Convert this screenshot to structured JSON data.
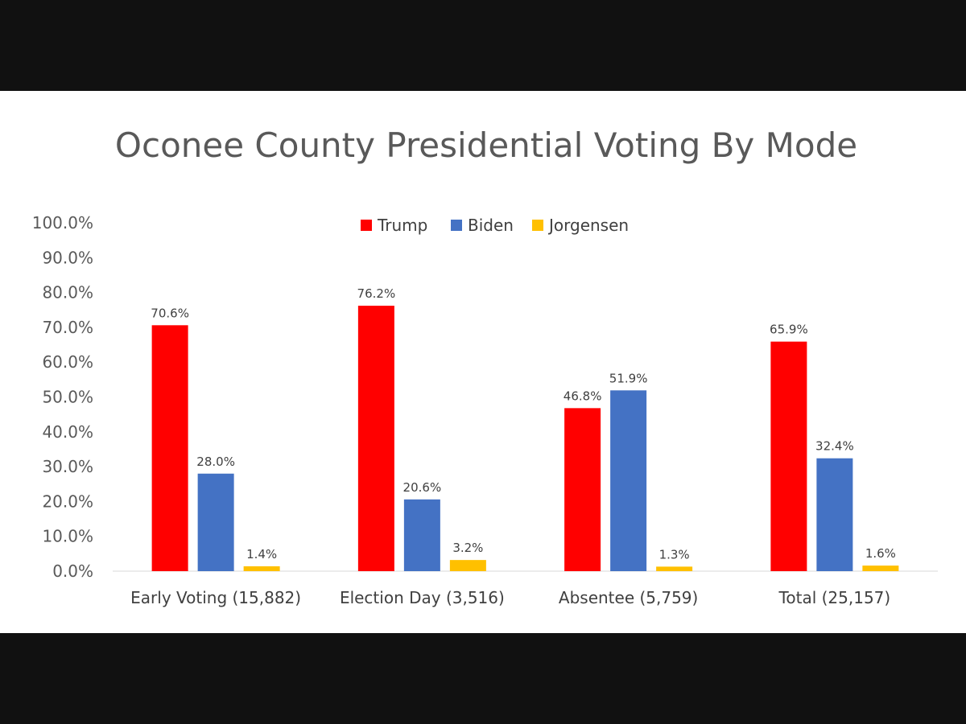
{
  "chart_data": {
    "type": "bar",
    "title": "Oconee County Presidential Voting By Mode",
    "categories": [
      "Early Voting (15,882)",
      "Election Day (3,516)",
      "Absentee (5,759)",
      "Total (25,157)"
    ],
    "series": [
      {
        "name": "Trump",
        "color": "#ff0000",
        "values": [
          70.6,
          76.2,
          46.8,
          65.9
        ]
      },
      {
        "name": "Biden",
        "color": "#4472c4",
        "values": [
          28.0,
          20.6,
          51.9,
          32.4
        ]
      },
      {
        "name": "Jorgensen",
        "color": "#ffc000",
        "values": [
          1.4,
          3.2,
          1.3,
          1.6
        ]
      }
    ],
    "data_labels": [
      [
        "70.6%",
        "76.2%",
        "46.8%",
        "65.9%"
      ],
      [
        "28.0%",
        "20.6%",
        "51.9%",
        "32.4%"
      ],
      [
        "1.4%",
        "3.2%",
        "1.3%",
        "1.6%"
      ]
    ],
    "y_ticks": [
      "0.0%",
      "10.0%",
      "20.0%",
      "30.0%",
      "40.0%",
      "50.0%",
      "60.0%",
      "70.0%",
      "80.0%",
      "90.0%",
      "100.0%"
    ],
    "ylim": [
      0,
      100
    ],
    "grid": false,
    "legend_position": "top"
  }
}
